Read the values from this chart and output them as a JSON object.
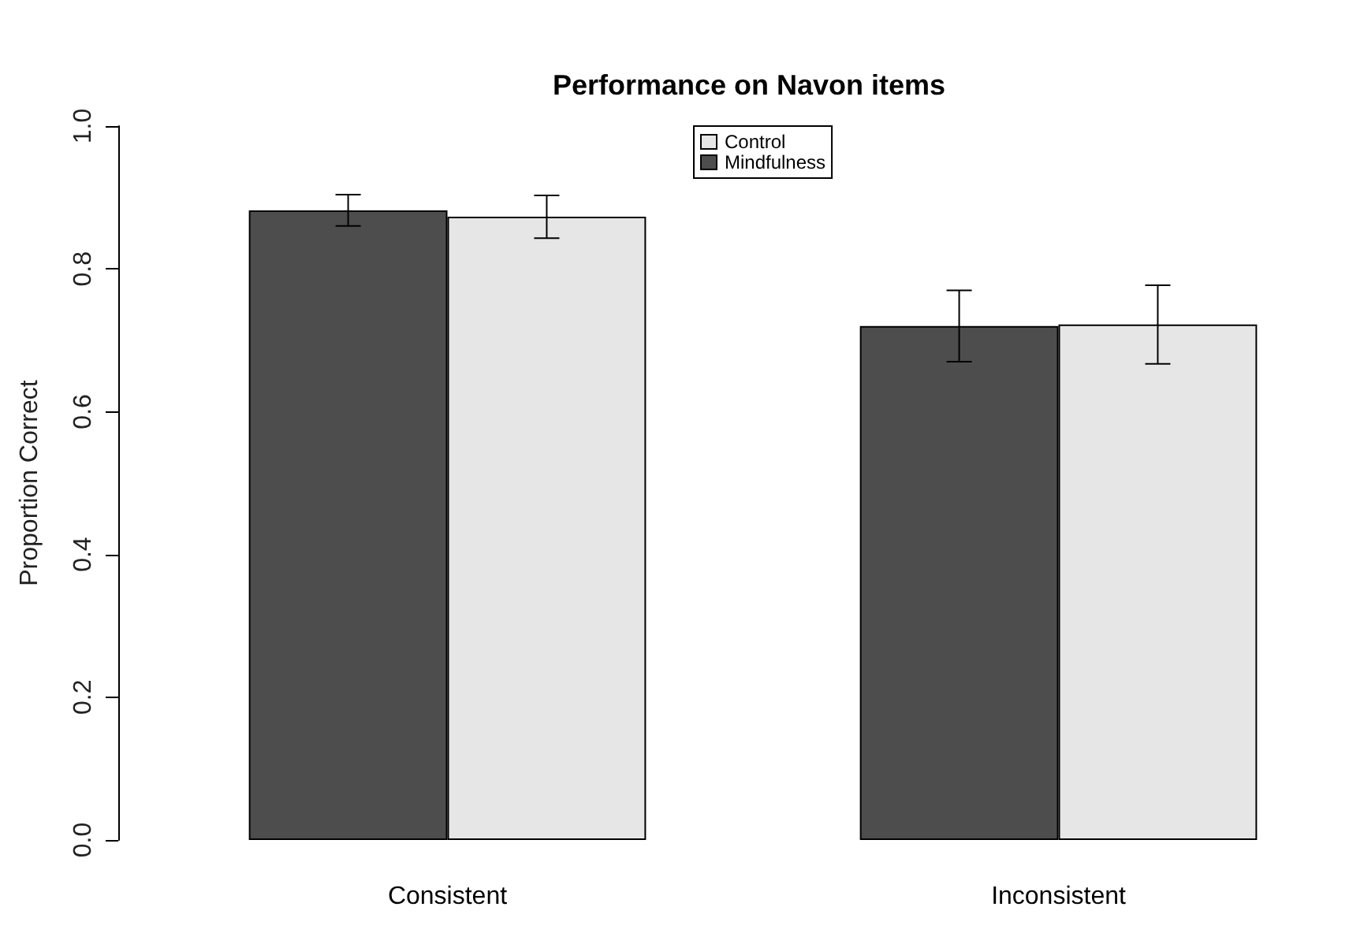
{
  "chart_data": {
    "type": "bar",
    "title": "Performance on Navon items",
    "ylabel": "Proportion Correct",
    "categories": [
      "Consistent",
      "Inconsistent"
    ],
    "series": [
      {
        "name": "Mindfulness",
        "color": "#4d4d4d",
        "values": [
          0.882,
          0.72
        ],
        "errors": [
          0.022,
          0.05
        ]
      },
      {
        "name": "Control",
        "color": "#e6e6e6",
        "values": [
          0.873,
          0.722
        ],
        "errors": [
          0.03,
          0.055
        ]
      }
    ],
    "ylim": [
      0,
      1
    ],
    "yticks": [
      {
        "value": 0,
        "label": "0.0"
      },
      {
        "value": 0.2,
        "label": "0.2"
      },
      {
        "value": 0.4,
        "label": "0.4"
      },
      {
        "value": 0.6,
        "label": "0.6"
      },
      {
        "value": 0.8,
        "label": "0.8"
      },
      {
        "value": 1,
        "label": "1.0"
      }
    ],
    "grid": false,
    "legend": "top"
  }
}
